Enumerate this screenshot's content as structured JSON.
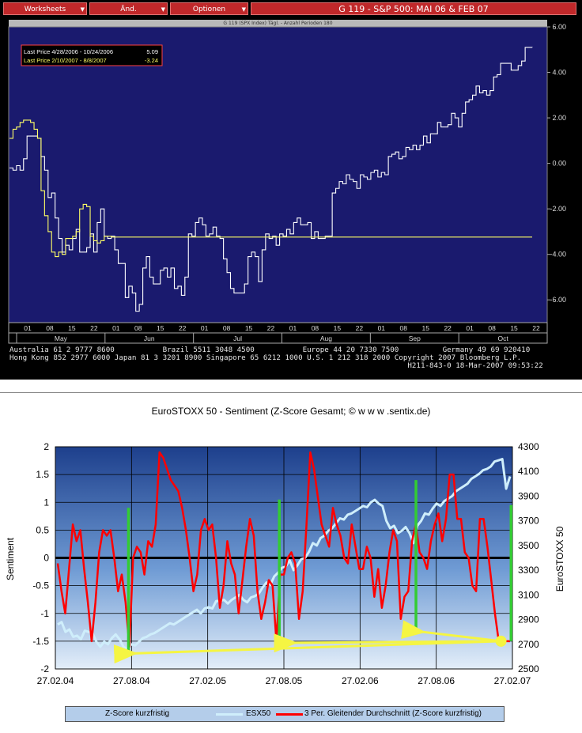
{
  "bloomberg": {
    "menu": [
      "Worksheets",
      "Änd.",
      "Optionen"
    ],
    "title": "G 119 - S&P 500: MAI 06 & FEB 07",
    "subtitle": "G 119 (SPX Index) Tägl. - Anzahl Perioden 180",
    "legend": [
      {
        "label": "Last Price 4/28/2006 - 10/24/2006",
        "value": "5.09",
        "color": "#ffffff"
      },
      {
        "label": "Last Price 2/10/2007 - 8/8/2007",
        "value": "-3.24",
        "color": "#ffff66"
      }
    ],
    "footer": [
      "Australia 61 2 9777 8600           Brazil 5511 3048 4500           Europe 44 20 7330 7500          Germany 49 69 920410",
      "Hong Kong 852 2977 6000 Japan 81 3 3201 8900 Singapore 65 6212 1000 U.S. 1 212 318 2000 Copyright 2007 Bloomberg L.P.",
      "                                                                                           H211-843-0 18-Mar-2007 09:53:22"
    ],
    "colors": {
      "plot_bg": "#1a1a6e",
      "series1": "#ffffff",
      "series2": "#ffff66",
      "accent": "#c0282a"
    }
  },
  "chart_data": [
    {
      "type": "line",
      "ylim": [
        -7,
        6
      ],
      "yticks": [
        "6.00",
        "4.00",
        "2.00",
        "0.00",
        "-2.00",
        "-4.00",
        "-6.00"
      ],
      "ytick_values": [
        6,
        4,
        2,
        0,
        -2,
        -4,
        -6
      ],
      "day_ticks": [
        "01",
        "08",
        "15",
        "22",
        "01",
        "08",
        "15",
        "22",
        "01",
        "08",
        "15",
        "22",
        "01",
        "08",
        "15",
        "22",
        "01",
        "08",
        "15",
        "22",
        "01",
        "08",
        "15",
        "22"
      ],
      "month_labels": [
        "May",
        "Jun",
        "Jul",
        "Aug",
        "Sep",
        "Oct"
      ],
      "series": [
        {
          "name": "Last Price 4/28/2006 - 10/24/2006",
          "color": "#ffffff",
          "values": [
            -0.2,
            -0.3,
            -0.1,
            -0.3,
            0.2,
            1.2,
            1.2,
            1.2,
            1.1,
            0.3,
            -0.3,
            -1.5,
            -1.3,
            -2.4,
            -3.3,
            -3.9,
            -3.6,
            -3.8,
            -3.3,
            -2.9,
            -3.9,
            -3.9,
            -3.7,
            -3.1,
            -3.9,
            -2.6,
            -2.0,
            -3.2,
            -3.3,
            -3.2,
            -3.8,
            -4.4,
            -4.4,
            -5.9,
            -5.4,
            -5.7,
            -6.5,
            -6.2,
            -4.6,
            -4.1,
            -5.0,
            -5.3,
            -5.3,
            -4.7,
            -4.6,
            -5.0,
            -4.6,
            -5.5,
            -5.4,
            -5.8,
            -5.0,
            -3.1,
            -3.2,
            -2.6,
            -2.4,
            -2.7,
            -3.2,
            -3.1,
            -2.8,
            -3.2,
            -3.3,
            -4.2,
            -4.8,
            -5.5,
            -5.7,
            -5.7,
            -5.7,
            -5.3,
            -4.1,
            -3.9,
            -4.1,
            -5.2,
            -3.8,
            -3.1,
            -3.3,
            -3.2,
            -3.6,
            -3.1,
            -3.2,
            -2.9,
            -3.1,
            -2.6,
            -2.4,
            -2.7,
            -2.7,
            -2.6,
            -3.3,
            -3.0,
            -3.3,
            -3.3,
            -3.2,
            -3.2,
            -1.3,
            -1.1,
            -0.8,
            -0.9,
            -0.5,
            -0.7,
            -0.8,
            -1.1,
            -0.5,
            -0.6,
            -0.7,
            -0.4,
            -0.3,
            -0.6,
            -0.4,
            -0.5,
            0.3,
            0.4,
            0.5,
            0.2,
            0.3,
            0.7,
            0.6,
            0.8,
            0.6,
            0.8,
            1.2,
            0.9,
            1.3,
            1.3,
            1.8,
            1.6,
            1.6,
            1.7,
            2.2,
            2.0,
            1.6,
            2.2,
            2.7,
            2.8,
            3.0,
            3.4,
            3.1,
            3.2,
            3.0,
            3.2,
            3.8,
            3.9,
            4.4,
            4.4,
            4.4,
            4.1,
            4.1,
            4.3,
            4.5,
            5.1,
            5.1,
            5.09
          ]
        },
        {
          "name": "Last Price 2/10/2007 - 8/8/2007",
          "color": "#ffff66",
          "values": [
            1.1,
            1.5,
            1.6,
            1.8,
            1.9,
            1.9,
            1.8,
            1.5,
            1.1,
            -1.2,
            -2.3,
            -3.0,
            -3.9,
            -4.1,
            -3.9,
            -4.0,
            -3.3,
            -3.3,
            -3.2,
            -3.0,
            -2.0,
            -1.8,
            -1.9,
            -3.2,
            -3.4,
            -3.5,
            -3.4,
            -3.2,
            -3.2,
            -3.24
          ]
        }
      ]
    },
    {
      "type": "line",
      "title": "EuroSTOXX 50 - Sentiment (Z-Score Gesamt;  © w w w .sentix.de)",
      "ylabel": "Sentiment",
      "y2label": "EuroSTOXX 50",
      "ylim": [
        -2,
        2
      ],
      "ylim2": [
        2500,
        4300
      ],
      "yticks": [
        "2",
        "1.5",
        "1",
        "0.5",
        "0",
        "-0.5",
        "-1",
        "-1.5",
        "-2"
      ],
      "ytick_values": [
        2,
        1.5,
        1,
        0.5,
        0,
        -0.5,
        -1,
        -1.5,
        -2
      ],
      "y2ticks": [
        "4300",
        "4100",
        "3900",
        "3700",
        "3500",
        "3300",
        "3100",
        "2900",
        "2700",
        "2500"
      ],
      "y2tick_values": [
        4300,
        4100,
        3900,
        3700,
        3500,
        3300,
        3100,
        2900,
        2700,
        2500
      ],
      "xticks": [
        "27.02.04",
        "27.08.04",
        "27.02.05",
        "27.08.05",
        "27.02.06",
        "27.08.06",
        "27.02.07"
      ],
      "grid": true,
      "legend_position": "bottom",
      "series": [
        {
          "name": "Z-Score kurzfristig",
          "color": "#33cc33"
        },
        {
          "name": "ESX50",
          "color": "#cfeefb",
          "axis": "right",
          "values": [
            2860,
            2880,
            2800,
            2820,
            2760,
            2770,
            2740,
            2810,
            2800,
            2790,
            2720,
            2680,
            2720,
            2700,
            2750,
            2780,
            2740,
            2680,
            2660,
            2700,
            2690,
            2720,
            2750,
            2760,
            2780,
            2790,
            2810,
            2830,
            2850,
            2870,
            2860,
            2880,
            2900,
            2920,
            2940,
            2960,
            2980,
            2950,
            2990,
            3000,
            2990,
            3050,
            3050,
            3060,
            3030,
            3060,
            3080,
            3100,
            3060,
            3040,
            3080,
            3090,
            3110,
            3160,
            3200,
            3180,
            3250,
            3280,
            3320,
            3330,
            3380,
            3300,
            3340,
            3390,
            3400,
            3450,
            3520,
            3500,
            3560,
            3580,
            3620,
            3640,
            3680,
            3720,
            3710,
            3750,
            3760,
            3780,
            3800,
            3820,
            3810,
            3850,
            3870,
            3840,
            3820,
            3700,
            3640,
            3660,
            3600,
            3620,
            3650,
            3600,
            3520,
            3660,
            3700,
            3760,
            3750,
            3800,
            3840,
            3820,
            3860,
            3880,
            3900,
            3940,
            3960,
            3980,
            4000,
            4040,
            4060,
            4080,
            4110,
            4120,
            4140,
            4180,
            4190,
            4200,
            3960,
            4060
          ]
        },
        {
          "name": "3 Per. Gleitender Durchschnitt (Z-Score kurzfristig)",
          "color": "#ff0000",
          "values": [
            -0.1,
            -0.6,
            -1.0,
            -0.2,
            0.6,
            0.3,
            0.5,
            -0.2,
            -0.8,
            -1.5,
            -0.8,
            0.1,
            0.5,
            0.4,
            0.5,
            0.0,
            -0.6,
            -0.3,
            -0.8,
            -1.6,
            0.0,
            0.2,
            0.1,
            -0.3,
            0.3,
            0.2,
            0.6,
            1.9,
            1.8,
            1.6,
            1.4,
            1.3,
            1.2,
            0.9,
            0.5,
            0.0,
            -0.6,
            -0.3,
            0.5,
            0.7,
            0.5,
            0.6,
            0.0,
            -0.9,
            -0.5,
            0.3,
            -0.1,
            -0.3,
            -1.0,
            -0.4,
            0.2,
            0.7,
            0.4,
            -0.6,
            -1.1,
            -0.8,
            -0.4,
            -0.5,
            -1.5,
            -0.3,
            -0.3,
            0.0,
            0.1,
            -0.1,
            -1.1,
            -0.6,
            0.6,
            1.9,
            1.6,
            1.1,
            0.6,
            0.4,
            0.2,
            0.9,
            0.6,
            0.4,
            0.0,
            -0.1,
            0.6,
            0.2,
            -0.2,
            -0.2,
            0.2,
            0.0,
            -0.7,
            -0.2,
            -0.9,
            -0.5,
            0.1,
            0.5,
            0.3,
            -1.1,
            -0.7,
            -0.6,
            0.3,
            0.6,
            0.1,
            0.0,
            -0.2,
            0.3,
            0.6,
            0.8,
            0.3,
            0.7,
            1.5,
            1.5,
            0.7,
            0.7,
            0.1,
            0.0,
            -0.5,
            -0.6,
            0.7,
            0.7,
            0.2,
            -0.4,
            -1.0,
            -1.5,
            -1.5,
            -1.5,
            -1.5
          ]
        }
      ],
      "z_score_spikes": [
        {
          "x": 0.16,
          "y_top": 0.9,
          "y_bottom": -1.75
        },
        {
          "x": 0.49,
          "y_top": 1.05,
          "y_bottom": -1.6
        },
        {
          "x": 0.789,
          "y_top": 1.4,
          "y_bottom": -1.35
        },
        {
          "x": 0.997,
          "y_top": 0.95,
          "y_bottom": -1.5
        }
      ],
      "arrows": [
        {
          "from_x": 0.975,
          "from_y": -1.5,
          "to_x": 0.17,
          "to_y": -1.72
        },
        {
          "from_x": 0.975,
          "from_y": -1.5,
          "to_x": 0.52,
          "to_y": -1.53
        },
        {
          "from_x": 0.975,
          "from_y": -1.5,
          "to_x": 0.8,
          "to_y": -1.33
        }
      ]
    }
  ]
}
